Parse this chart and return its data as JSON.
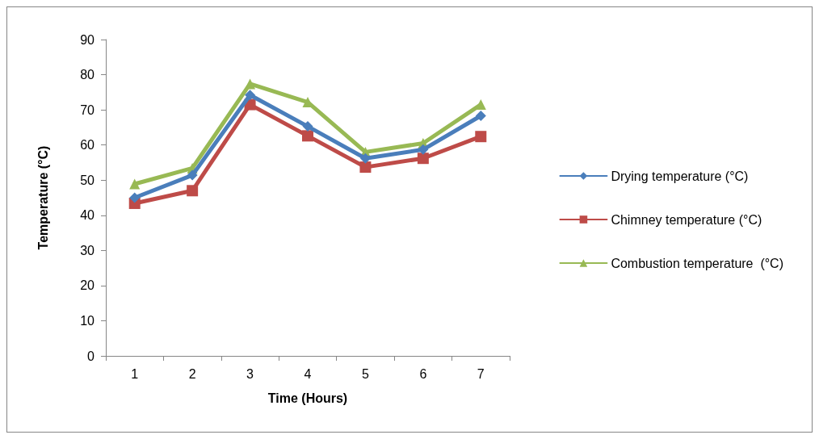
{
  "chart_data": {
    "type": "line",
    "xlabel": "Time (Hours)",
    "ylabel": "Temperature (°C)",
    "categories": [
      "1",
      "2",
      "3",
      "4",
      "5",
      "6",
      "7"
    ],
    "ylim": [
      0,
      90
    ],
    "yticks": [
      0,
      10,
      20,
      30,
      40,
      50,
      60,
      70,
      80,
      90
    ],
    "grid": false,
    "legend": "right",
    "series": [
      {
        "name": "Drying temperature (°C)",
        "color": "#4a7ebb",
        "marker": "diamond",
        "values": [
          45,
          51.4,
          74.2,
          65.3,
          56.2,
          58.7,
          68.3
        ]
      },
      {
        "name": "Chimney temperature (°C)",
        "color": "#be4b48",
        "marker": "square",
        "values": [
          43.4,
          47,
          71.5,
          62.6,
          53.7,
          56.2,
          62.4
        ]
      },
      {
        "name": "Combustion temperature  (°C)",
        "color": "#98b954",
        "marker": "triangle",
        "values": [
          48.9,
          53.4,
          77.4,
          72.2,
          58,
          60.5,
          71.5
        ]
      }
    ]
  }
}
